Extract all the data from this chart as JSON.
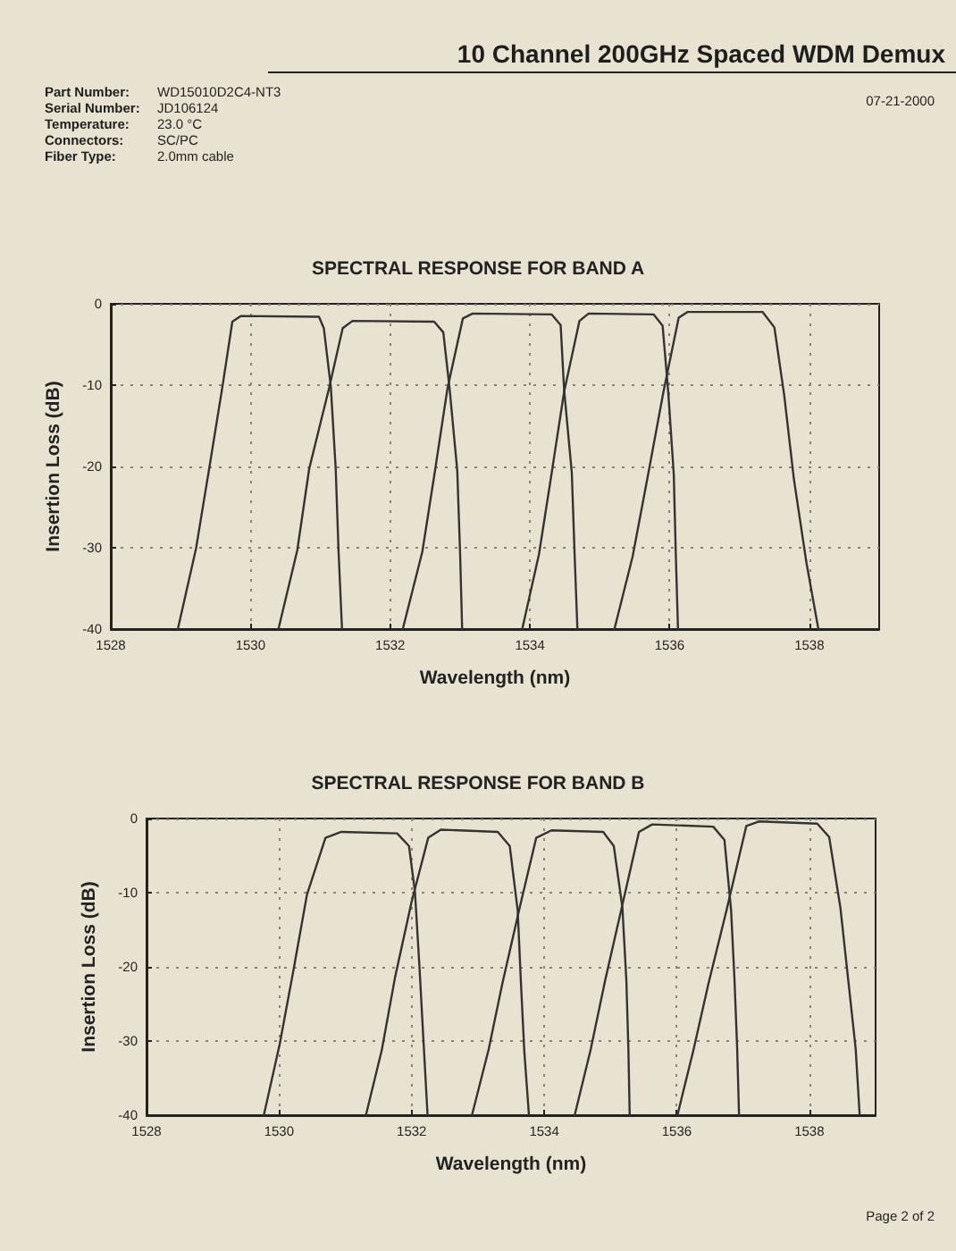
{
  "chart_data": [
    {
      "type": "other",
      "title": "10 Channel 200GHz Spaced WDM Demux",
      "annotations": [
        "Part Number: WD15010D2C4-NT3",
        "Serial Number: JD106124",
        "Temperature: 23.0 °C",
        "Connectors: SC/PC",
        "Fiber Type: 2.0mm cable",
        "07-21-2000"
      ]
    },
    {
      "type": "line",
      "title": "SPECTRAL RESPONSE FOR BAND A",
      "xlabel": "Wavelength (nm)",
      "ylabel": "Insertion Loss (dB)",
      "xlim": [
        1528,
        1539
      ],
      "ylim": [
        -40,
        0
      ],
      "xticks": [
        1528,
        1530,
        1532,
        1534,
        1536,
        1538
      ],
      "yticks": [
        -40,
        -30,
        -20,
        -10,
        0
      ],
      "grid": true,
      "marker": "none",
      "line_style": "solid",
      "series": [
        {
          "color": "#333333",
          "x": [
            1528.96,
            1529.22,
            1529.41,
            1529.6,
            1529.74,
            1529.86,
            1530.98,
            1531.05,
            1531.15,
            1531.22,
            1531.26,
            1531.31
          ],
          "values": [
            -40,
            -30.1,
            -20.2,
            -10.1,
            -2.2,
            -1.5,
            -1.6,
            -3.0,
            -10.2,
            -20.3,
            -30.3,
            -40
          ]
        },
        {
          "color": "#333333",
          "x": [
            1530.4,
            1530.67,
            1530.84,
            1531.13,
            1531.32,
            1531.46,
            1532.63,
            1532.76,
            1532.85,
            1532.96,
            1533.0,
            1533.03
          ],
          "values": [
            -40,
            -30.3,
            -20.3,
            -10.2,
            -3.0,
            -2.1,
            -2.2,
            -3.5,
            -10.4,
            -20.5,
            -30.5,
            -40
          ]
        },
        {
          "color": "#333333",
          "x": [
            1532.18,
            1532.46,
            1532.64,
            1532.82,
            1533.04,
            1533.18,
            1534.31,
            1534.44,
            1534.49,
            1534.6,
            1534.64,
            1534.68
          ],
          "values": [
            -40,
            -30.5,
            -20.6,
            -10.4,
            -1.8,
            -1.2,
            -1.3,
            -2.6,
            -10.6,
            -20.8,
            -30.8,
            -40
          ]
        },
        {
          "color": "#333333",
          "x": [
            1533.89,
            1534.13,
            1534.31,
            1534.49,
            1534.71,
            1534.84,
            1535.77,
            1535.9,
            1535.98,
            1536.06,
            1536.09,
            1536.12
          ],
          "values": [
            -40,
            -30.8,
            -20.9,
            -10.8,
            -2.1,
            -1.2,
            -1.3,
            -2.7,
            -10.8,
            -21.0,
            -31.2,
            -40
          ]
        },
        {
          "color": "#333333",
          "x": [
            1535.21,
            1535.47,
            1535.69,
            1535.91,
            1536.13,
            1536.26,
            1537.33,
            1537.5,
            1537.64,
            1537.78,
            1537.96,
            1538.13
          ],
          "values": [
            -40,
            -31.1,
            -21.1,
            -10.9,
            -1.7,
            -1.0,
            -1.0,
            -2.9,
            -11.2,
            -21.6,
            -31.9,
            -40
          ]
        }
      ]
    },
    {
      "type": "line",
      "title": "SPECTRAL RESPONSE FOR BAND B",
      "xlabel": "Wavelength (nm)",
      "ylabel": "Insertion Loss (dB)",
      "xlim": [
        1528,
        1539
      ],
      "ylim": [
        -40,
        0
      ],
      "xticks": [
        1528,
        1530,
        1532,
        1534,
        1536,
        1538
      ],
      "yticks": [
        -40,
        -30,
        -20,
        -10,
        0
      ],
      "grid": true,
      "marker": "none",
      "line_style": "solid",
      "series": [
        {
          "color": "#333333",
          "x": [
            1529.77,
            1530.01,
            1530.22,
            1530.42,
            1530.7,
            1530.94,
            1531.78,
            1531.96,
            1532.05,
            1532.12,
            1532.18,
            1532.24
          ],
          "values": [
            -40,
            -30.4,
            -20.3,
            -10.3,
            -2.6,
            -1.8,
            -2.0,
            -3.7,
            -9.9,
            -20.3,
            -30.2,
            -40
          ]
        },
        {
          "color": "#333333",
          "x": [
            1531.31,
            1531.55,
            1531.75,
            1532.0,
            1532.25,
            1532.44,
            1533.3,
            1533.48,
            1533.6,
            1533.65,
            1533.7,
            1533.77
          ],
          "values": [
            -40,
            -31.2,
            -21.4,
            -11.2,
            -2.6,
            -1.5,
            -1.8,
            -3.7,
            -12.4,
            -22.3,
            -31.4,
            -40
          ]
        },
        {
          "color": "#333333",
          "x": [
            1532.91,
            1533.16,
            1533.37,
            1533.62,
            1533.88,
            1534.11,
            1534.89,
            1535.05,
            1535.18,
            1535.24,
            1535.27,
            1535.29
          ],
          "values": [
            -40,
            -31.2,
            -22.2,
            -12.4,
            -2.6,
            -1.6,
            -1.8,
            -3.7,
            -12.0,
            -21.9,
            -31.0,
            -40
          ]
        },
        {
          "color": "#333333",
          "x": [
            1534.46,
            1534.7,
            1534.92,
            1535.16,
            1535.43,
            1535.63,
            1536.55,
            1536.72,
            1536.82,
            1536.87,
            1536.91,
            1536.94
          ],
          "values": [
            -40,
            -31.2,
            -21.8,
            -12.4,
            -1.8,
            -0.8,
            -1.1,
            -2.9,
            -12.4,
            -21.5,
            -30.6,
            -40
          ]
        },
        {
          "color": "#333333",
          "x": [
            1536.01,
            1536.25,
            1536.48,
            1536.75,
            1537.05,
            1537.24,
            1538.12,
            1538.3,
            1538.47,
            1538.59,
            1538.7,
            1538.76
          ],
          "values": [
            -40,
            -31.3,
            -22.2,
            -12.4,
            -1.0,
            -0.4,
            -0.7,
            -2.5,
            -12.1,
            -22.0,
            -31.1,
            -40
          ]
        }
      ]
    },
    {
      "type": "other",
      "annotations": [
        "Page 2 of 2"
      ]
    }
  ]
}
